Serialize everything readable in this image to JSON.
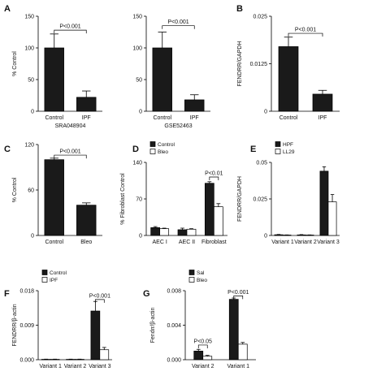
{
  "chart_data": [
    {
      "id": "A-left",
      "panel_letter": "A",
      "type": "bar",
      "ylabel": "% Control",
      "xlabel": "SRA048904",
      "ylim": [
        0,
        150
      ],
      "yticks": [
        "0",
        "50",
        "100",
        "150"
      ],
      "series": [
        {
          "values": [
            100,
            22
          ],
          "errors": [
            22,
            10
          ],
          "fills": [
            "#1a1a1a",
            "#1a1a1a"
          ]
        }
      ],
      "categories": [
        "Control",
        "IPF"
      ],
      "significance": [
        {
          "label": "P<0.001",
          "from": 0,
          "to": 1,
          "y": 128
        }
      ]
    },
    {
      "id": "A-right",
      "panel_letter": "",
      "type": "bar",
      "ylabel": "",
      "xlabel": "GSE52463",
      "ylim": [
        0,
        150
      ],
      "yticks": [
        "0",
        "50",
        "100",
        "150"
      ],
      "series": [
        {
          "values": [
            100,
            18
          ],
          "errors": [
            25,
            8
          ],
          "fills": [
            "#1a1a1a",
            "#1a1a1a"
          ]
        }
      ],
      "categories": [
        "Control",
        "IPF"
      ],
      "significance": [
        {
          "label": "P<0.001",
          "from": 0,
          "to": 1,
          "y": 135
        }
      ]
    },
    {
      "id": "B",
      "panel_letter": "B",
      "type": "bar",
      "ylabel": "FENDRR/GAPDH",
      "xlabel": "",
      "ylim": [
        0,
        0.025
      ],
      "yticks": [
        "0",
        "0.0125",
        "0.025"
      ],
      "series": [
        {
          "values": [
            0.017,
            0.0045
          ],
          "errors": [
            0.0025,
            0.001
          ],
          "fills": [
            "#1a1a1a",
            "#1a1a1a"
          ]
        }
      ],
      "categories": [
        "Control",
        "IPF"
      ],
      "significance": [
        {
          "label": "P<0.001",
          "from": 0,
          "to": 1,
          "y": 0.0205
        }
      ]
    },
    {
      "id": "C",
      "panel_letter": "C",
      "type": "bar",
      "ylabel": "% Control",
      "xlabel": "",
      "ylim": [
        0,
        120
      ],
      "yticks": [
        "0",
        "60",
        "120"
      ],
      "series": [
        {
          "values": [
            100,
            40
          ],
          "errors": [
            2,
            3
          ],
          "fills": [
            "#1a1a1a",
            "#1a1a1a"
          ]
        }
      ],
      "categories": [
        "Control",
        "Bleo"
      ],
      "significance": [
        {
          "label": "P<0.001",
          "from": 0,
          "to": 1,
          "y": 106
        }
      ]
    },
    {
      "id": "D",
      "panel_letter": "D",
      "type": "bar",
      "ylabel": "% Fibroblast Control",
      "xlabel": "",
      "ylim": [
        0,
        140
      ],
      "yticks": [
        "0",
        "70",
        "140"
      ],
      "legend": [
        "Control",
        "Bleo"
      ],
      "legend_position": "top-left",
      "series": [
        {
          "name": "Control",
          "values": [
            15,
            11,
            100
          ],
          "errors": [
            2,
            3,
            3
          ],
          "fills": [
            "#1a1a1a",
            "#1a1a1a",
            "#1a1a1a"
          ]
        },
        {
          "name": "Bleo",
          "values": [
            13,
            12,
            55
          ],
          "errors": [
            1,
            1,
            6
          ],
          "fills": [
            "#ffffff",
            "#ffffff",
            "#ffffff"
          ]
        }
      ],
      "categories": [
        "AEC I",
        "AEC II",
        "Fibroblast"
      ],
      "significance": [
        {
          "label": "P<0.01",
          "group": 2,
          "y": 112
        }
      ]
    },
    {
      "id": "E",
      "panel_letter": "E",
      "type": "bar",
      "ylabel": "FENDRR/GAPDH",
      "xlabel": "",
      "ylim": [
        0,
        0.05
      ],
      "yticks": [
        "0",
        "0.025",
        "0.05"
      ],
      "legend": [
        "HPF",
        "LL29"
      ],
      "legend_position": "top-left",
      "series": [
        {
          "name": "HPF",
          "values": [
            0.0005,
            0.0004,
            0.044
          ],
          "errors": [
            0.0002,
            0.0002,
            0.003
          ],
          "fills": [
            "#1a1a1a",
            "#1a1a1a",
            "#1a1a1a"
          ]
        },
        {
          "name": "LL29",
          "values": [
            0.0003,
            0.0003,
            0.023
          ],
          "errors": [
            0.0001,
            0.0001,
            0.005
          ],
          "fills": [
            "#ffffff",
            "#ffffff",
            "#ffffff"
          ]
        }
      ],
      "categories": [
        "Variant 1",
        "Variant 2",
        "Variant 3"
      ],
      "significance": []
    },
    {
      "id": "F",
      "panel_letter": "F",
      "type": "bar",
      "ylabel": "FENDRR/β-actin",
      "xlabel": "",
      "ylim": [
        0,
        0.018
      ],
      "yticks": [
        "0.000",
        "0.009",
        "0.018"
      ],
      "legend": [
        "Control",
        "IPF"
      ],
      "legend_position": "top-left",
      "series": [
        {
          "name": "Control",
          "values": [
            0.0001,
            0.0001,
            0.0127
          ],
          "errors": [
            5e-05,
            5e-05,
            0.0025
          ],
          "fills": [
            "#1a1a1a",
            "#1a1a1a",
            "#1a1a1a"
          ]
        },
        {
          "name": "IPF",
          "values": [
            0.0001,
            0.0001,
            0.0026
          ],
          "errors": [
            5e-05,
            5e-05,
            0.0006
          ],
          "fills": [
            "#ffffff",
            "#ffffff",
            "#ffffff"
          ]
        }
      ],
      "categories": [
        "Variant 1",
        "Variant 2",
        "Variant 3"
      ],
      "significance": [
        {
          "label": "P<0.001",
          "group": 2,
          "y": 0.0157
        }
      ]
    },
    {
      "id": "G",
      "panel_letter": "G",
      "type": "bar",
      "ylabel": "Fendrr/β-actin",
      "xlabel": "",
      "ylim": [
        0,
        0.008
      ],
      "yticks": [
        "0.000",
        "0.004",
        "0.008"
      ],
      "legend": [
        "Sal",
        "Bleo"
      ],
      "legend_position": "top-left",
      "series": [
        {
          "name": "Sal",
          "values": [
            0.001,
            0.007
          ],
          "errors": [
            0.0002,
            0.00015
          ],
          "fills": [
            "#1a1a1a",
            "#1a1a1a"
          ]
        },
        {
          "name": "Bleo",
          "values": [
            0.0004,
            0.0018
          ],
          "errors": [
            0.0001,
            0.0002
          ],
          "fills": [
            "#ffffff",
            "#ffffff"
          ]
        }
      ],
      "categories": [
        "Variant 2",
        "Variant 1"
      ],
      "significance": [
        {
          "label": "P<0.05",
          "group": 0,
          "y": 0.0017
        },
        {
          "label": "P<0.001",
          "group": 1,
          "y": 0.0074
        }
      ]
    }
  ]
}
